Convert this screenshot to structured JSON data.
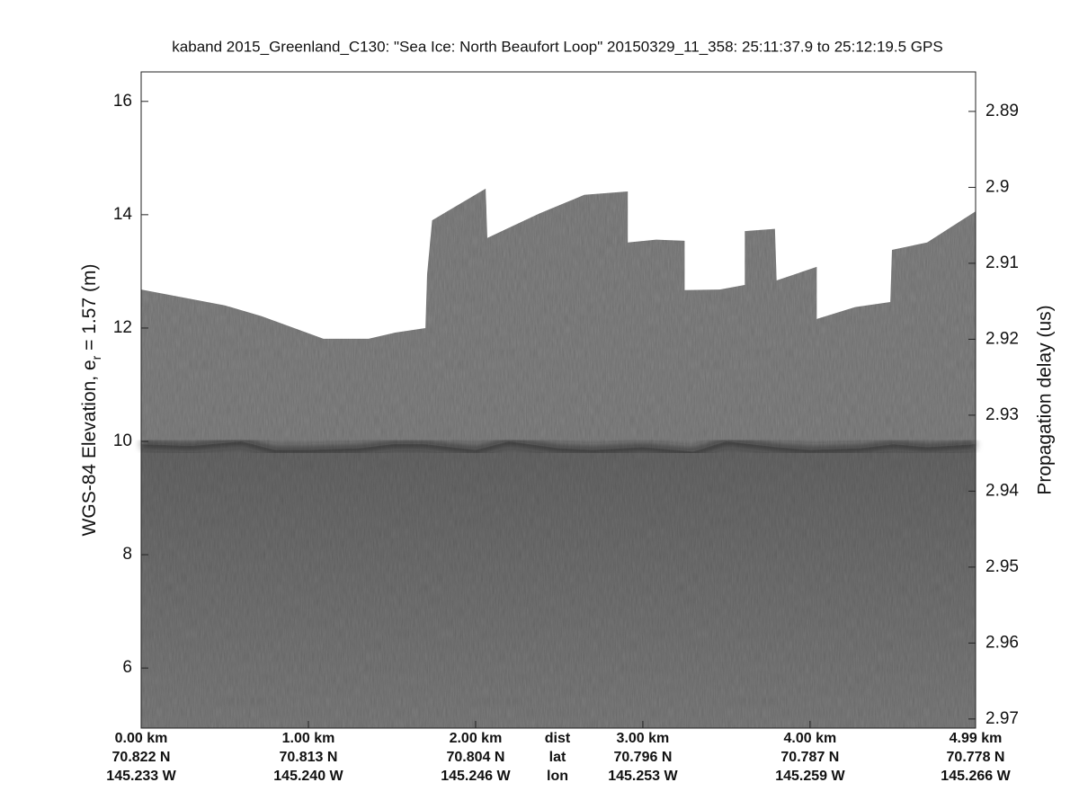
{
  "chart_data": {
    "type": "echogram",
    "title": "kaband 2015_Greenland_C130: \"Sea Ice: North Beaufort Loop\"  20150329_11_358: 25:11:37.9 to 25:12:19.5 GPS",
    "ylabel": [
      "WGS-84 Elevation, e",
      "r",
      " = 1.57 (m)"
    ],
    "y2label": "Propagation delay (us)",
    "xlim": [
      0,
      4.99
    ],
    "ylim": [
      4.94,
      16.52
    ],
    "yticks": [
      6,
      8,
      10,
      12,
      14,
      16
    ],
    "y2lim": [
      2.9712,
      2.8848
    ],
    "y2ticks": [
      2.89,
      2.9,
      2.91,
      2.92,
      2.93,
      2.94,
      2.95,
      2.96,
      2.97
    ],
    "xticks": [
      {
        "value": 0,
        "label": "0.00 km"
      },
      {
        "value": 1,
        "label": "1.00 km"
      },
      {
        "value": 2,
        "label": "2.00 km"
      },
      {
        "value": 3,
        "label": "3.00 km"
      },
      {
        "value": 4,
        "label": "4.00 km"
      },
      {
        "value": 4.99,
        "label": "4.99 km"
      }
    ],
    "lat_labels": [
      "70.822 N",
      "70.813 N",
      "70.804 N",
      "70.796 N",
      "70.787 N",
      "70.778 N"
    ],
    "lon_labels": [
      "145.233 W",
      "145.240 W",
      "145.246 W",
      "145.253 W",
      "145.259 W",
      "145.266 W"
    ],
    "row_labels": [
      "dist",
      "lat",
      "lon"
    ],
    "color": "#848484",
    "surface": {
      "x": [
        0,
        0.5,
        0.72,
        1.09,
        1.36,
        1.52,
        1.7,
        1.71,
        1.74,
        2.06,
        2.07,
        2.38,
        2.65,
        2.91,
        2.91,
        3.08,
        3.25,
        3.25,
        3.46,
        3.61,
        3.61,
        3.79,
        3.8,
        4.04,
        4.04,
        4.27,
        4.48,
        4.49,
        4.7,
        4.99
      ],
      "y": [
        12.68,
        12.4,
        12.21,
        11.81,
        11.81,
        11.92,
        12.0,
        12.95,
        13.9,
        14.46,
        13.59,
        14.02,
        14.35,
        14.41,
        13.51,
        13.56,
        13.54,
        12.67,
        12.68,
        12.76,
        13.71,
        13.75,
        12.84,
        13.08,
        12.16,
        12.37,
        12.46,
        13.38,
        13.51,
        14.06
      ]
    },
    "sea_surface": {
      "x": [
        0,
        0.3,
        0.6,
        0.8,
        1.0,
        1.3,
        1.5,
        1.7,
        2.0,
        2.2,
        2.5,
        2.7,
        3.0,
        3.3,
        3.5,
        3.8,
        4.0,
        4.3,
        4.5,
        4.7,
        4.99
      ],
      "y": [
        9.95,
        9.92,
        10.0,
        9.85,
        9.85,
        9.88,
        9.95,
        9.95,
        9.85,
        10.0,
        9.88,
        9.85,
        9.9,
        9.82,
        10.0,
        9.9,
        9.85,
        9.88,
        9.95,
        9.9,
        9.95
      ]
    }
  }
}
